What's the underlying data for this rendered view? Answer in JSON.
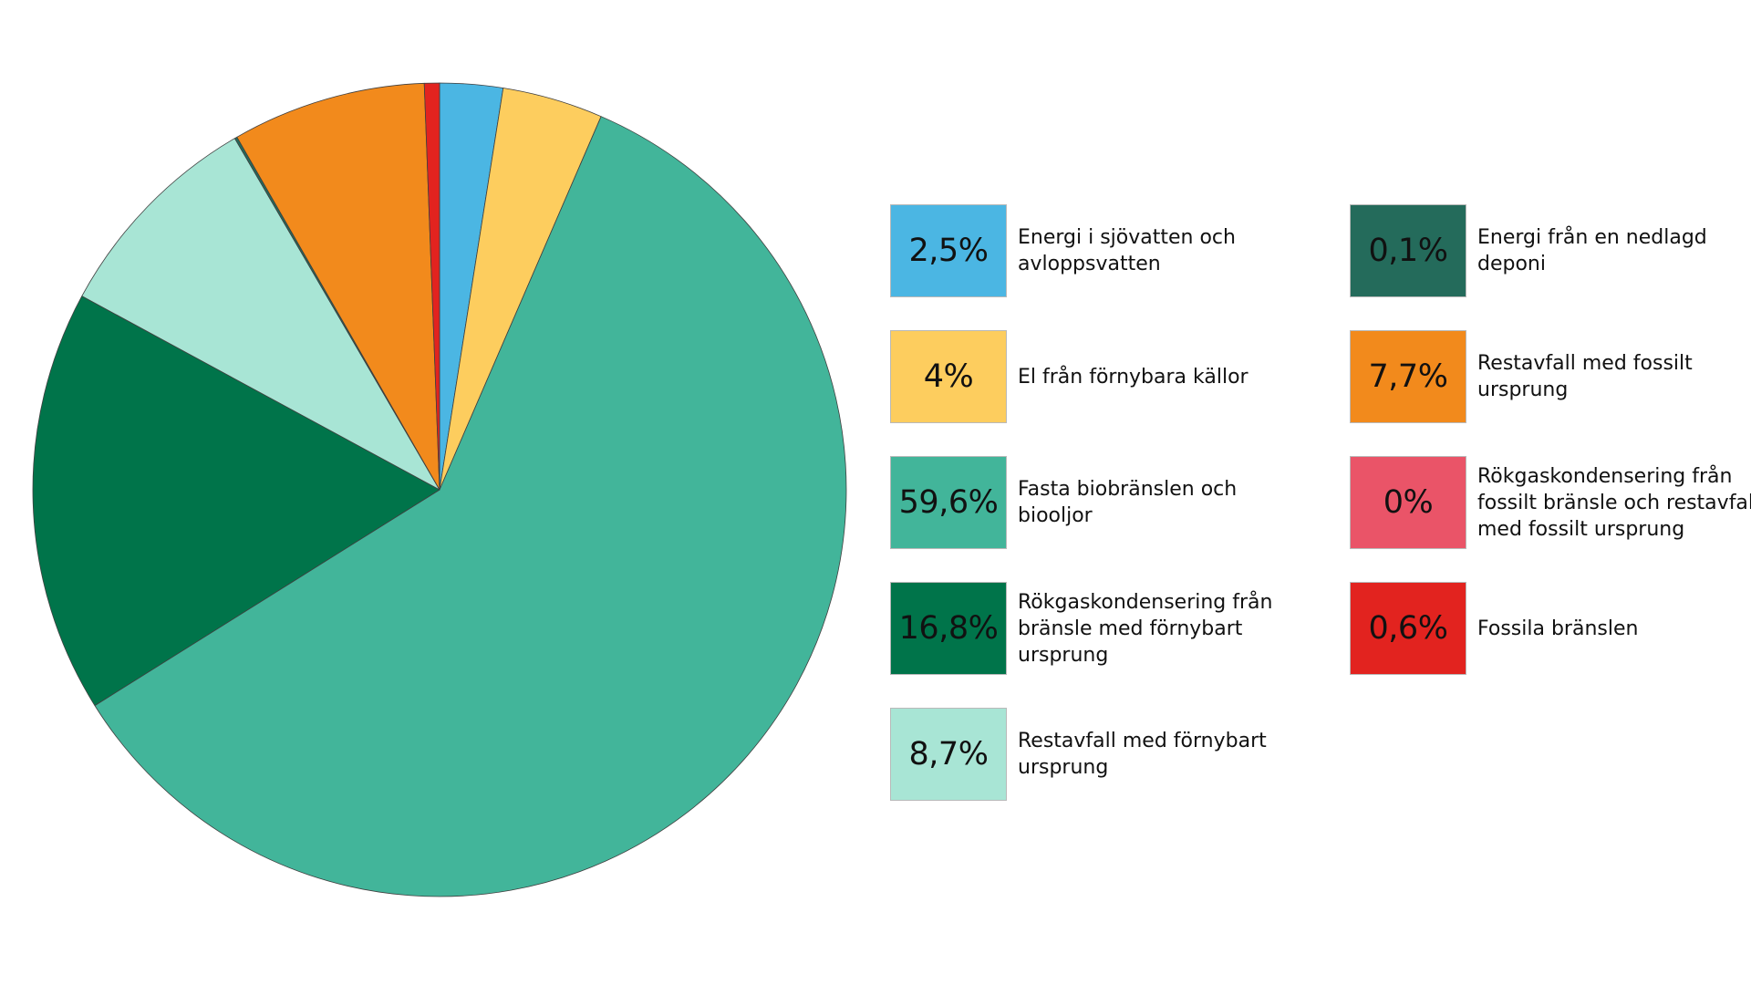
{
  "chart_data": {
    "type": "pie",
    "start": "12 o'clock",
    "direction": "clockwise",
    "slices": [
      {
        "label": "Energi i sjövatten och avloppsvatten",
        "value": 2.5,
        "display": "2,5%",
        "color": "#4BB6E3"
      },
      {
        "label": "El från förnybara källor",
        "value": 4,
        "display": "4%",
        "color": "#FDCD5E"
      },
      {
        "label": "Fasta biobränslen och biooljor",
        "value": 59.6,
        "display": "59,6%",
        "color": "#42B59A"
      },
      {
        "label": "Rökgaskondensering från bränsle med förnybart ursprung",
        "value": 16.8,
        "display": "16,8%",
        "color": "#00744A"
      },
      {
        "label": "Restavfall med förnybart ursprung",
        "value": 8.7,
        "display": "8,7%",
        "color": "#A8E5D5"
      },
      {
        "label": "Energi från en nedlagd deponi",
        "value": 0.1,
        "display": "0,1%",
        "color": "#246B5B"
      },
      {
        "label": "Restavfall med fossilt ursprung",
        "value": 7.7,
        "display": "7,7%",
        "color": "#F28A1C"
      },
      {
        "label": "Rökgaskondensering från fossilt bränsle och restavfall med fossilt ursprung",
        "value": 0,
        "display": "0%",
        "color": "#EA5468"
      },
      {
        "label": "Fossila bränslen",
        "value": 0.6,
        "display": "0,6%",
        "color": "#E2231F"
      }
    ]
  }
}
